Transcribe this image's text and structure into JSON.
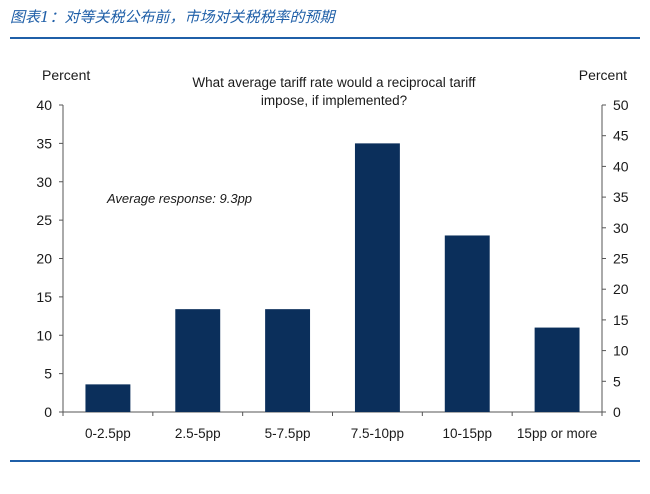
{
  "caption": "图表1：对等关税公布前，市场对关税税率的预期",
  "chart_data": {
    "type": "bar",
    "title": "What average tariff rate would a reciprocal tariff impose, if implemented?",
    "title_lines": [
      "What average tariff rate would a reciprocal tariff",
      "impose, if implemented?"
    ],
    "ylabel_left": "Percent",
    "ylabel_right": "Percent",
    "annotation": "Average response: 9.3pp",
    "categories": [
      "0-2.5pp",
      "2.5-5pp",
      "5-7.5pp",
      "7.5-10pp",
      "10-15pp",
      "15pp or more"
    ],
    "values": [
      3.6,
      13.4,
      13.4,
      35,
      23,
      11
    ],
    "ylim_left": [
      0,
      40
    ],
    "yticks_left": [
      0,
      5,
      10,
      15,
      20,
      25,
      30,
      35,
      40
    ],
    "ylim_right": [
      0,
      50
    ],
    "yticks_right": [
      0,
      5,
      10,
      15,
      20,
      25,
      30,
      35,
      40,
      45,
      50
    ],
    "bar_color": "#0b2f5b",
    "grid": false
  }
}
